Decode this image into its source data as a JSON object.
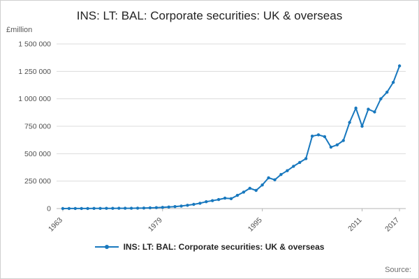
{
  "chart": {
    "title": "INS: LT: BAL: Corporate securities: UK & overseas",
    "legend": "INS: LT: BAL: Corporate securities: UK & overseas",
    "source": "Source:"
  },
  "chart_data": {
    "type": "line",
    "title": "INS: LT: BAL: Corporate securities: UK & overseas",
    "xlabel": "",
    "ylabel": "£million",
    "y_unit": "£million",
    "line_color": "#1878be",
    "grid": "horizontal",
    "legend_position": "bottom",
    "xlim": [
      1962,
      2018
    ],
    "ylim": [
      0,
      1500000
    ],
    "x_ticks": [
      1963,
      1979,
      1995,
      2011,
      2017
    ],
    "y_ticks": [
      0,
      250000,
      500000,
      750000,
      1000000,
      1250000,
      1500000
    ],
    "y_tick_labels": [
      "0",
      "250 000",
      "500 000",
      "750 000",
      "1 000 000",
      "1 250 000",
      "1 500 000"
    ],
    "series": [
      {
        "name": "INS: LT: BAL: Corporate securities: UK & overseas",
        "color": "#1878be",
        "x": [
          1963,
          1964,
          1965,
          1966,
          1967,
          1968,
          1969,
          1970,
          1971,
          1972,
          1973,
          1974,
          1975,
          1976,
          1977,
          1978,
          1979,
          1980,
          1981,
          1982,
          1983,
          1984,
          1985,
          1986,
          1987,
          1988,
          1989,
          1990,
          1991,
          1992,
          1993,
          1994,
          1995,
          1996,
          1997,
          1998,
          1999,
          2000,
          2001,
          2002,
          2003,
          2004,
          2005,
          2006,
          2007,
          2008,
          2009,
          2010,
          2011,
          2012,
          2013,
          2014,
          2015,
          2016,
          2017
        ],
        "values": [
          300,
          400,
          500,
          700,
          900,
          1100,
          1300,
          1600,
          2100,
          2600,
          2600,
          2300,
          3600,
          4600,
          6100,
          8100,
          11000,
          14000,
          18000,
          23000,
          30000,
          38000,
          48000,
          62000,
          72000,
          82000,
          95000,
          90000,
          120000,
          150000,
          185000,
          165000,
          215000,
          280000,
          262000,
          310000,
          345000,
          385000,
          420000,
          455000,
          660000,
          672000,
          655000,
          560000,
          580000,
          620000,
          785000,
          915000,
          750000,
          905000,
          880000,
          1000000,
          1060000,
          1150000,
          1300000
        ]
      }
    ]
  }
}
